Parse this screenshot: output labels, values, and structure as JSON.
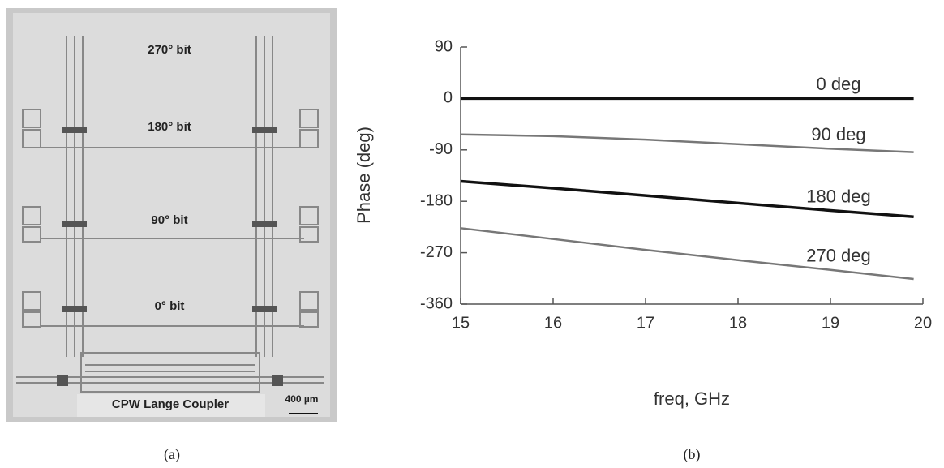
{
  "panel_a": {
    "labels": [
      "270° bit",
      "180° bit",
      "90° bit",
      "0° bit"
    ],
    "coupler": "CPW Lange Coupler",
    "scale": "400 µm",
    "caption": "(a)"
  },
  "chart_data": {
    "type": "line",
    "caption": "(b)",
    "x_label": "freq, GHz",
    "y_label": "Phase (deg)",
    "x": [
      15,
      16,
      17,
      18,
      19,
      19.9
    ],
    "series": [
      {
        "name": "0 deg",
        "color": "#111111",
        "values": [
          0,
          0,
          0,
          0,
          0,
          0
        ]
      },
      {
        "name": "90 deg",
        "color": "#777777",
        "values": [
          -63,
          -66,
          -72,
          -80,
          -88,
          -94
        ]
      },
      {
        "name": "180 deg",
        "color": "#111111",
        "values": [
          -145,
          -157,
          -170,
          -183,
          -196,
          -207
        ]
      },
      {
        "name": "270 deg",
        "color": "#777777",
        "values": [
          -227,
          -246,
          -265,
          -283,
          -300,
          -316
        ]
      }
    ],
    "xlim": [
      15,
      20
    ],
    "xticks": [
      15,
      16,
      17,
      18,
      19,
      20
    ],
    "ylim": [
      -360,
      90
    ],
    "yticks": [
      -360,
      -270,
      -180,
      -90,
      0,
      90
    ]
  }
}
